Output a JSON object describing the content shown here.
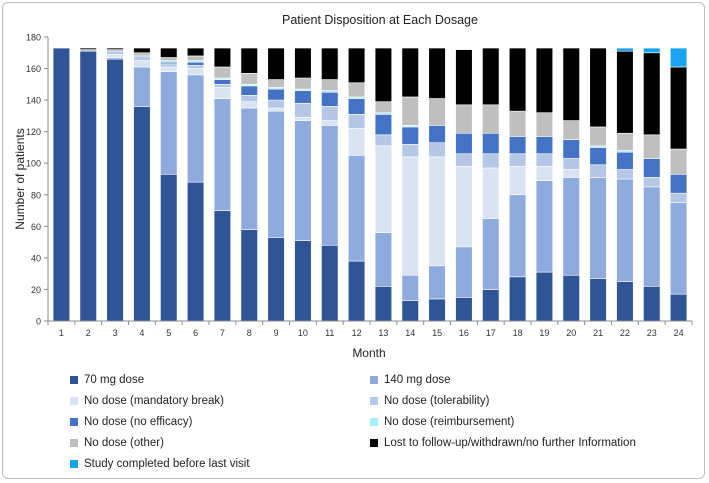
{
  "chart_data": {
    "type": "bar",
    "stacked": true,
    "title": "Patient Disposition at Each Dosage",
    "xlabel": "Month",
    "ylabel": "Number of patients",
    "ylim": [
      0,
      180
    ],
    "yticks": [
      0,
      20,
      40,
      60,
      80,
      100,
      120,
      140,
      160,
      180
    ],
    "categories": [
      "1",
      "2",
      "3",
      "4",
      "5",
      "6",
      "7",
      "8",
      "9",
      "10",
      "11",
      "12",
      "13",
      "14",
      "15",
      "16",
      "17",
      "18",
      "19",
      "20",
      "21",
      "22",
      "23",
      "24"
    ],
    "series": [
      {
        "name": "70 mg dose",
        "color": "#2f5597",
        "values": [
          173,
          171,
          166,
          136,
          93,
          88,
          70,
          58,
          53,
          51,
          48,
          38,
          22,
          13,
          14,
          15,
          20,
          28,
          31,
          29,
          27,
          25,
          22,
          17
        ]
      },
      {
        "name": "140 mg dose",
        "color": "#8faadc",
        "values": [
          0,
          0,
          1,
          25,
          65,
          68,
          71,
          77,
          80,
          76,
          76,
          67,
          34,
          16,
          21,
          32,
          45,
          52,
          58,
          62,
          64,
          65,
          63,
          58
        ]
      },
      {
        "name": "No dose (mandatory break)",
        "color": "#dae3f3",
        "values": [
          0,
          0,
          2,
          4,
          3,
          4,
          7,
          4,
          2,
          2,
          3,
          17,
          55,
          75,
          69,
          51,
          32,
          18,
          9,
          5,
          0,
          0,
          0,
          0
        ]
      },
      {
        "name": "No dose (tolerability)",
        "color": "#b4c7e7",
        "values": [
          0,
          1,
          2,
          3,
          2,
          2,
          2,
          4,
          5,
          9,
          9,
          9,
          7,
          8,
          9,
          8,
          9,
          8,
          8,
          7,
          8,
          6,
          6,
          6
        ]
      },
      {
        "name": "No dose (no efficacy)",
        "color": "#4472c4",
        "values": [
          0,
          0,
          0,
          0,
          1,
          2,
          3,
          6,
          7,
          8,
          9,
          10,
          13,
          11,
          11,
          13,
          13,
          11,
          11,
          12,
          11,
          11,
          12,
          12
        ]
      },
      {
        "name": "No dose (reimbursement)",
        "color": "#a6f0fa",
        "values": [
          0,
          0,
          0,
          0,
          1,
          1,
          1,
          1,
          1,
          1,
          1,
          1,
          1,
          1,
          0,
          0,
          0,
          0,
          0,
          0,
          1,
          1,
          0,
          0
        ]
      },
      {
        "name": "No dose (other)",
        "color": "#bfbfbf",
        "values": [
          0,
          0,
          1,
          2,
          2,
          3,
          7,
          7,
          5,
          7,
          7,
          9,
          7,
          18,
          17,
          18,
          18,
          16,
          15,
          12,
          12,
          11,
          15,
          16
        ]
      },
      {
        "name": "Lost to follow-up/withdrawn/no further Information",
        "color": "#000000",
        "values": [
          0,
          1,
          1,
          3,
          6,
          5,
          12,
          16,
          20,
          19,
          20,
          22,
          34,
          31,
          32,
          35,
          36,
          40,
          41,
          46,
          50,
          52,
          52,
          52
        ]
      },
      {
        "name": "Study completed before last visit",
        "color": "#1aa3f0",
        "values": [
          0,
          0,
          0,
          0,
          0,
          0,
          0,
          0,
          0,
          0,
          0,
          0,
          0,
          0,
          0,
          0,
          0,
          0,
          0,
          0,
          0,
          2,
          3,
          12
        ]
      }
    ]
  }
}
